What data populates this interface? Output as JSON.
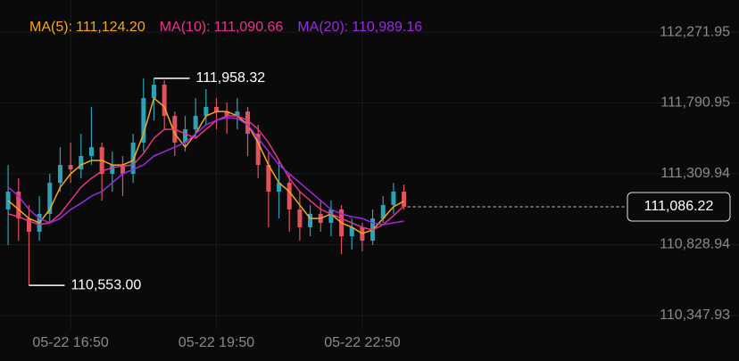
{
  "chart_data": {
    "type": "candlestick",
    "up_color": "#2aa3b8",
    "down_color": "#e0525c",
    "grid": true,
    "ylim": [
      110251,
      112490
    ],
    "yticks": [
      {
        "value": 112271.95,
        "label": "112,271.95"
      },
      {
        "value": 111790.95,
        "label": "111,790.95"
      },
      {
        "value": 111309.94,
        "label": "111,309.94"
      },
      {
        "value": 110828.94,
        "label": "110,828.94"
      },
      {
        "value": 110347.93,
        "label": "110,347.93"
      }
    ],
    "xlim": [
      -0.78,
      59.2
    ],
    "xticks": [
      {
        "value": 6,
        "label": "05-22 16:50"
      },
      {
        "value": 20,
        "label": "05-22 19:50"
      },
      {
        "value": 34,
        "label": "05-22 22:50"
      }
    ],
    "candles": [
      {
        "open": 111068,
        "high": 111370,
        "low": 110826,
        "close": 111189
      },
      {
        "open": 111189,
        "high": 111280,
        "low": 110856,
        "close": 111007
      },
      {
        "open": 111007,
        "high": 111098,
        "low": 110553.0,
        "close": 110917
      },
      {
        "open": 110917,
        "high": 111159,
        "low": 110856,
        "close": 111038
      },
      {
        "open": 111038,
        "high": 111310,
        "low": 110977,
        "close": 111249
      },
      {
        "open": 111249,
        "high": 111491,
        "low": 111189,
        "close": 111370
      },
      {
        "open": 111370,
        "high": 111522,
        "low": 111249,
        "close": 111340
      },
      {
        "open": 111340,
        "high": 111582,
        "low": 111280,
        "close": 111431
      },
      {
        "open": 111431,
        "high": 111764,
        "low": 111370,
        "close": 111491
      },
      {
        "open": 111491,
        "high": 111522,
        "low": 111128,
        "close": 111310
      },
      {
        "open": 111310,
        "high": 111461,
        "low": 111189,
        "close": 111370
      },
      {
        "open": 111370,
        "high": 111431,
        "low": 111159,
        "close": 111310
      },
      {
        "open": 111310,
        "high": 111582,
        "low": 111249,
        "close": 111522
      },
      {
        "open": 111522,
        "high": 111957,
        "low": 111461,
        "close": 111824
      },
      {
        "open": 111824,
        "high": 111958.32,
        "low": 111673,
        "close": 111915
      },
      {
        "open": 111915,
        "high": 111945,
        "low": 111612,
        "close": 111703
      },
      {
        "open": 111703,
        "high": 111733,
        "low": 111431,
        "close": 111522
      },
      {
        "open": 111522,
        "high": 111703,
        "low": 111461,
        "close": 111612
      },
      {
        "open": 111612,
        "high": 111824,
        "low": 111552,
        "close": 111703
      },
      {
        "open": 111703,
        "high": 111885,
        "low": 111643,
        "close": 111764
      },
      {
        "open": 111764,
        "high": 111824,
        "low": 111612,
        "close": 111733
      },
      {
        "open": 111733,
        "high": 111794,
        "low": 111582,
        "close": 111703
      },
      {
        "open": 111703,
        "high": 111824,
        "low": 111612,
        "close": 111733
      },
      {
        "open": 111733,
        "high": 111764,
        "low": 111431,
        "close": 111582
      },
      {
        "open": 111582,
        "high": 111643,
        "low": 111280,
        "close": 111370
      },
      {
        "open": 111370,
        "high": 111461,
        "low": 110947,
        "close": 111189
      },
      {
        "open": 111189,
        "high": 111401,
        "low": 111007,
        "close": 111249
      },
      {
        "open": 111249,
        "high": 111310,
        "low": 110917,
        "close": 111068
      },
      {
        "open": 111068,
        "high": 111189,
        "low": 110856,
        "close": 110947
      },
      {
        "open": 110947,
        "high": 111098,
        "low": 110886,
        "close": 111038
      },
      {
        "open": 111038,
        "high": 111128,
        "low": 110917,
        "close": 110977
      },
      {
        "open": 110977,
        "high": 111128,
        "low": 110886,
        "close": 111068
      },
      {
        "open": 111068,
        "high": 111098,
        "low": 110765,
        "close": 110886
      },
      {
        "open": 110886,
        "high": 111007,
        "low": 110796,
        "close": 110947
      },
      {
        "open": 110947,
        "high": 110977,
        "low": 110784,
        "close": 110856
      },
      {
        "open": 110856,
        "high": 111068,
        "low": 110826,
        "close": 111007
      },
      {
        "open": 111007,
        "high": 111159,
        "low": 110977,
        "close": 111098
      },
      {
        "open": 111098,
        "high": 111249,
        "low": 111038,
        "close": 111189
      },
      {
        "open": 111189,
        "high": 111237,
        "low": 111068,
        "close": 111086.22
      }
    ],
    "series": [
      {
        "name": "MA(5)",
        "color": "#f5a623",
        "legend_value": {
          "value": 111124.2,
          "label": "111,124.20"
        },
        "values": [
          111128,
          111068,
          111007,
          110977,
          111068,
          111219,
          111310,
          111370,
          111401,
          111401,
          111370,
          111370,
          111401,
          111582,
          111824,
          111764,
          111582,
          111491,
          111582,
          111703,
          111733,
          111733,
          111703,
          111643,
          111522,
          111370,
          111249,
          111189,
          111098,
          111007,
          111007,
          111038,
          110977,
          110947,
          110905,
          110929,
          111007,
          111086,
          111124.2
        ]
      },
      {
        "name": "MA(10)",
        "color": "#e8348a",
        "legend_value": {
          "value": 111090.66,
          "label": "111,090.66"
        },
        "values": [
          111038,
          111019,
          110989,
          110965,
          110977,
          111038,
          111128,
          111219,
          111280,
          111328,
          111352,
          111364,
          111370,
          111449,
          111552,
          111612,
          111612,
          111582,
          111552,
          111612,
          111673,
          111703,
          111703,
          111673,
          111612,
          111522,
          111401,
          111280,
          111189,
          111128,
          111068,
          111038,
          111007,
          110977,
          110947,
          110929,
          110965,
          111026,
          111090.66
        ]
      },
      {
        "name": "MA(20)",
        "color": "#9a2be2",
        "legend_value": {
          "value": 110989.16,
          "label": "110,989.16"
        },
        "values": [
          111219,
          111159,
          111068,
          111007,
          110977,
          111007,
          111068,
          111110,
          111159,
          111189,
          111249,
          111310,
          111340,
          111370,
          111431,
          111461,
          111491,
          111522,
          111582,
          111643,
          111673,
          111691,
          111685,
          111643,
          111552,
          111461,
          111370,
          111310,
          111249,
          111189,
          111128,
          111068,
          111038,
          111019,
          111007,
          110977,
          110965,
          110977,
          110989.16
        ]
      }
    ],
    "high_annotation": {
      "index": 14,
      "value": 111958.32,
      "label": "111,958.32"
    },
    "low_annotation": {
      "index": 2,
      "value": 110553.0,
      "label": "110,553.00"
    },
    "last_price": {
      "value": 111086.22,
      "label": "111,086.22"
    }
  }
}
